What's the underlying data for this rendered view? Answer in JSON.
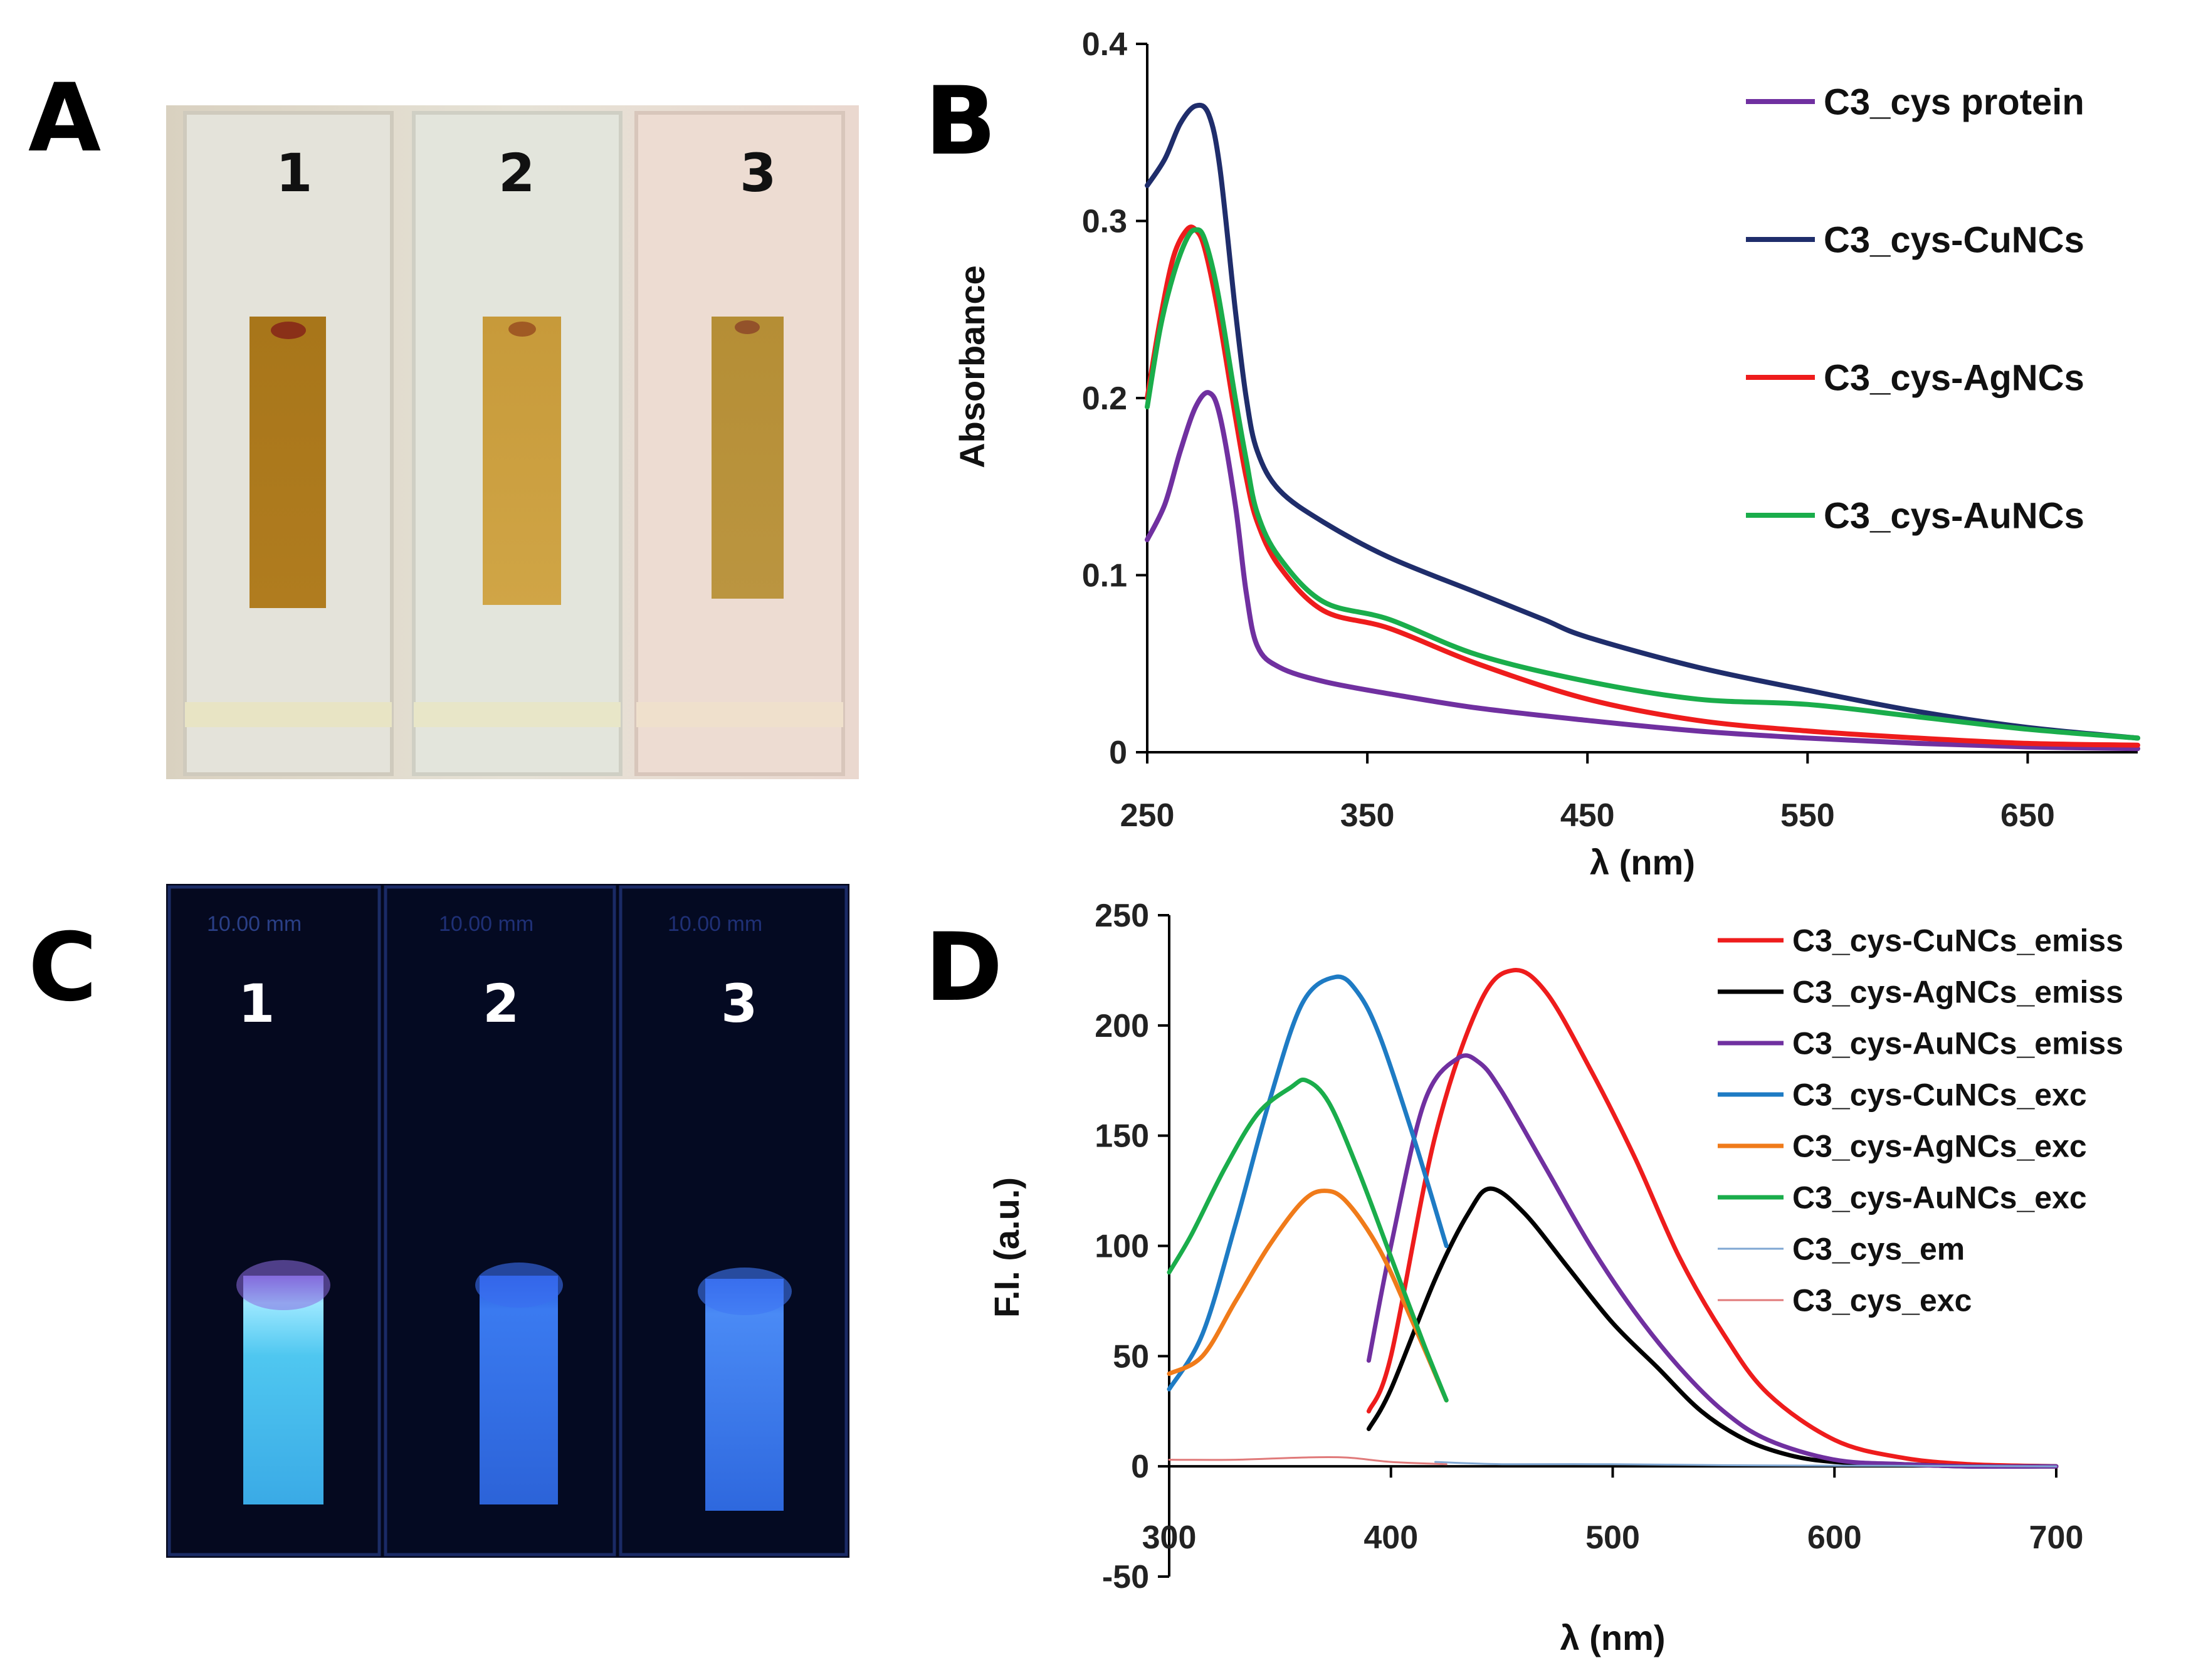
{
  "panels": {
    "A": {
      "letter": "A",
      "cuvette_labels": [
        "1",
        "2",
        "3"
      ]
    },
    "B": {
      "letter": "B"
    },
    "C": {
      "letter": "C",
      "cuvette_labels": [
        "1",
        "2",
        "3"
      ],
      "path_label": "10.00 mm"
    },
    "D": {
      "letter": "D"
    }
  },
  "chart_data": [
    {
      "type": "line",
      "panel": "B",
      "xlabel": "λ (nm)",
      "ylabel": "Absorbance",
      "xlim": [
        250,
        700
      ],
      "ylim": [
        0,
        0.4
      ],
      "xticks": [
        "250",
        "350",
        "450",
        "550",
        "650"
      ],
      "yticks": [
        "0",
        "0.1",
        "0.2",
        "0.3",
        "0.4"
      ],
      "legend_position": "right",
      "series": [
        {
          "name": "C3_cys protein",
          "color": "#7030a0",
          "x": [
            250,
            258,
            265,
            272,
            278,
            283,
            290,
            295,
            300,
            310,
            330,
            360,
            400,
            450,
            500,
            550,
            600,
            650,
            700
          ],
          "y": [
            0.12,
            0.14,
            0.17,
            0.195,
            0.203,
            0.19,
            0.14,
            0.09,
            0.06,
            0.048,
            0.04,
            0.033,
            0.025,
            0.018,
            0.012,
            0.008,
            0.005,
            0.003,
            0.002
          ]
        },
        {
          "name": "C3_cys-CuNCs",
          "color": "#1f2d6b",
          "x": [
            250,
            258,
            265,
            272,
            278,
            283,
            290,
            295,
            300,
            310,
            330,
            360,
            400,
            430,
            450,
            500,
            550,
            600,
            650,
            700
          ],
          "y": [
            0.32,
            0.335,
            0.355,
            0.365,
            0.36,
            0.33,
            0.25,
            0.2,
            0.17,
            0.148,
            0.13,
            0.11,
            0.09,
            0.075,
            0.065,
            0.048,
            0.035,
            0.023,
            0.014,
            0.008
          ]
        },
        {
          "name": "C3_cys-AgNCs",
          "color": "#ee1c1c",
          "x": [
            250,
            256,
            262,
            268,
            272,
            276,
            282,
            290,
            295,
            300,
            310,
            330,
            360,
            400,
            450,
            500,
            550,
            600,
            650,
            700
          ],
          "y": [
            0.2,
            0.245,
            0.28,
            0.295,
            0.295,
            0.285,
            0.25,
            0.19,
            0.155,
            0.13,
            0.105,
            0.08,
            0.07,
            0.05,
            0.03,
            0.018,
            0.012,
            0.008,
            0.005,
            0.004
          ]
        },
        {
          "name": "C3_cys-AuNCs",
          "color": "#1aad4b",
          "x": [
            250,
            256,
            262,
            268,
            272,
            276,
            282,
            290,
            295,
            300,
            310,
            330,
            360,
            400,
            450,
            500,
            550,
            600,
            650,
            700
          ],
          "y": [
            0.195,
            0.24,
            0.27,
            0.29,
            0.295,
            0.29,
            0.26,
            0.2,
            0.165,
            0.135,
            0.11,
            0.085,
            0.075,
            0.055,
            0.04,
            0.03,
            0.027,
            0.02,
            0.013,
            0.008
          ]
        }
      ]
    },
    {
      "type": "line",
      "panel": "D",
      "xlabel": "λ (nm)",
      "ylabel": "F.I. (a.u.)",
      "xlim": [
        300,
        700
      ],
      "ylim": [
        -50,
        250
      ],
      "xticks": [
        "300",
        "400",
        "500",
        "600",
        "700"
      ],
      "yticks": [
        "-50",
        "0",
        "50",
        "100",
        "150",
        "200",
        "250"
      ],
      "legend_position": "right",
      "series": [
        {
          "name": "C3_cys-CuNCs_emiss",
          "color": "#ee1c1c",
          "width": 7,
          "x": [
            390,
            400,
            420,
            440,
            455,
            470,
            490,
            510,
            530,
            550,
            570,
            600,
            630,
            660,
            700
          ],
          "y": [
            25,
            50,
            150,
            210,
            225,
            215,
            180,
            140,
            95,
            60,
            33,
            12,
            4,
            1,
            0
          ]
        },
        {
          "name": "C3_cys-AgNCs_emiss",
          "color": "#000000",
          "width": 7,
          "x": [
            390,
            400,
            420,
            435,
            445,
            460,
            480,
            500,
            520,
            540,
            560,
            580,
            600,
            630,
            660,
            700
          ],
          "y": [
            17,
            35,
            85,
            115,
            126,
            115,
            90,
            65,
            45,
            25,
            12,
            5,
            2,
            1,
            0,
            0
          ]
        },
        {
          "name": "C3_cys-AuNCs_emiss",
          "color": "#7030a0",
          "width": 7,
          "x": [
            390,
            400,
            415,
            430,
            440,
            450,
            470,
            490,
            510,
            530,
            550,
            570,
            600,
            630,
            660,
            700
          ],
          "y": [
            48,
            100,
            165,
            185,
            183,
            170,
            135,
            100,
            70,
            45,
            25,
            12,
            3,
            1,
            0,
            0
          ]
        },
        {
          "name": "C3_cys-CuNCs_exc",
          "color": "#1e7bc4",
          "width": 7,
          "x": [
            300,
            315,
            330,
            345,
            360,
            375,
            385,
            395,
            410,
            425
          ],
          "y": [
            35,
            60,
            110,
            165,
            210,
            222,
            215,
            195,
            150,
            100
          ]
        },
        {
          "name": "C3_cys-AgNCs_exc",
          "color": "#f07b1a",
          "width": 7,
          "x": [
            300,
            315,
            330,
            345,
            360,
            370,
            380,
            395,
            410,
            425
          ],
          "y": [
            42,
            50,
            75,
            100,
            120,
            125,
            120,
            98,
            65,
            30
          ]
        },
        {
          "name": "C3_cys-AuNCs_exc",
          "color": "#1aad4b",
          "width": 7,
          "x": [
            300,
            310,
            325,
            340,
            355,
            362,
            372,
            385,
            400,
            415,
            425
          ],
          "y": [
            88,
            105,
            135,
            160,
            172,
            175,
            165,
            135,
            95,
            55,
            30
          ]
        },
        {
          "name": "C3_cys_em",
          "color": "#7fa7d3",
          "width": 3,
          "x": [
            420,
            450,
            500,
            550,
            600,
            650,
            700
          ],
          "y": [
            2,
            1,
            1,
            0.5,
            0.3,
            0.2,
            0
          ]
        },
        {
          "name": "C3_cys_exc",
          "color": "#e07a7a",
          "width": 3,
          "x": [
            300,
            330,
            360,
            380,
            400,
            425
          ],
          "y": [
            3,
            3,
            4,
            4,
            2,
            1
          ]
        }
      ]
    }
  ]
}
